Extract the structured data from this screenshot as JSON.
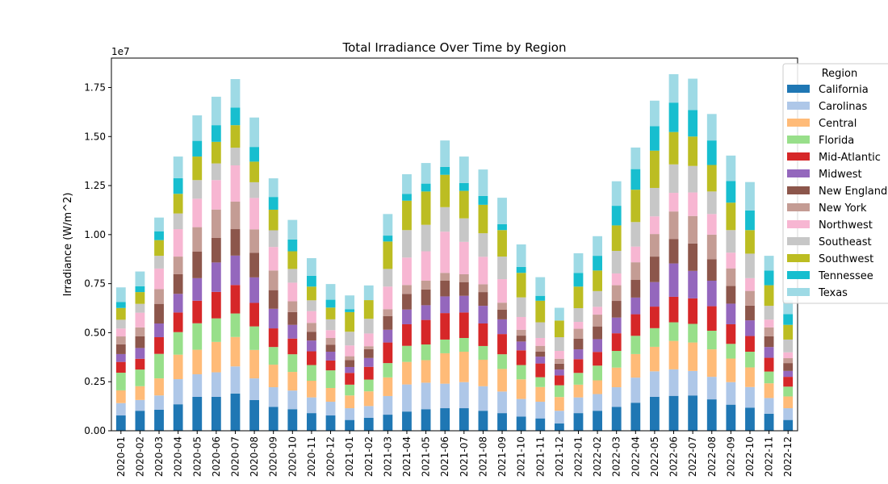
{
  "chart_data": {
    "type": "bar",
    "stacked": true,
    "title": "Total Irradiance Over Time by Region",
    "xlabel": "",
    "ylabel": "Irradiance (W/m^2)",
    "y_offset_label": "1e7",
    "ylim": [
      0,
      1.9
    ],
    "yticks": [
      "0.00",
      "0.25",
      "0.50",
      "0.75",
      "1.00",
      "1.25",
      "1.50",
      "1.75"
    ],
    "grid": false,
    "legend_title": "Region",
    "legend_position": "top-right",
    "categories": [
      "2020-01",
      "2020-02",
      "2020-03",
      "2020-04",
      "2020-05",
      "2020-06",
      "2020-07",
      "2020-08",
      "2020-09",
      "2020-10",
      "2020-11",
      "2020-12",
      "2021-01",
      "2021-02",
      "2021-03",
      "2021-04",
      "2021-05",
      "2021-06",
      "2021-07",
      "2021-08",
      "2021-09",
      "2021-10",
      "2021-11",
      "2021-12",
      "2022-01",
      "2022-02",
      "2022-03",
      "2022-04",
      "2022-05",
      "2022-06",
      "2022-07",
      "2022-08",
      "2022-09",
      "2022-10",
      "2022-11",
      "2022-12"
    ],
    "series": [
      {
        "name": "California",
        "color": "#1f77b4",
        "values": [
          0.078,
          0.102,
          0.107,
          0.135,
          0.173,
          0.173,
          0.19,
          0.157,
          0.122,
          0.11,
          0.09,
          0.078,
          0.055,
          0.066,
          0.082,
          0.098,
          0.11,
          0.115,
          0.115,
          0.102,
          0.09,
          0.072,
          0.063,
          0.037,
          0.09,
          0.102,
          0.122,
          0.143,
          0.173,
          0.178,
          0.18,
          0.16,
          0.133,
          0.118,
          0.087,
          0.055
        ]
      },
      {
        "name": "Carolinas",
        "color": "#aec7e8",
        "values": [
          0.063,
          0.055,
          0.073,
          0.128,
          0.115,
          0.125,
          0.138,
          0.11,
          0.1,
          0.095,
          0.08,
          0.07,
          0.06,
          0.06,
          0.095,
          0.138,
          0.135,
          0.125,
          0.133,
          0.125,
          0.11,
          0.09,
          0.085,
          0.065,
          0.08,
          0.085,
          0.1,
          0.128,
          0.13,
          0.135,
          0.125,
          0.115,
          0.115,
          0.105,
          0.08,
          0.06
        ]
      },
      {
        "name": "Central",
        "color": "#ffbb78",
        "values": [
          0.065,
          0.07,
          0.087,
          0.125,
          0.125,
          0.155,
          0.15,
          0.145,
          0.115,
          0.095,
          0.085,
          0.07,
          0.065,
          0.075,
          0.095,
          0.115,
          0.115,
          0.155,
          0.155,
          0.135,
          0.115,
          0.1,
          0.075,
          0.07,
          0.065,
          0.07,
          0.1,
          0.12,
          0.125,
          0.145,
          0.145,
          0.14,
          0.12,
          0.1,
          0.075,
          0.06
        ]
      },
      {
        "name": "Florida",
        "color": "#98df8a",
        "values": [
          0.09,
          0.085,
          0.125,
          0.115,
          0.135,
          0.12,
          0.12,
          0.12,
          0.09,
          0.09,
          0.08,
          0.09,
          0.055,
          0.06,
          0.073,
          0.082,
          0.08,
          0.07,
          0.07,
          0.07,
          0.075,
          0.073,
          0.05,
          0.06,
          0.06,
          0.075,
          0.085,
          0.093,
          0.095,
          0.095,
          0.095,
          0.095,
          0.075,
          0.08,
          0.06,
          0.05
        ]
      },
      {
        "name": "Mid-Atlantic",
        "color": "#d62728",
        "values": [
          0.055,
          0.055,
          0.085,
          0.1,
          0.115,
          0.135,
          0.145,
          0.12,
          0.095,
          0.08,
          0.07,
          0.05,
          0.06,
          0.065,
          0.105,
          0.11,
          0.125,
          0.135,
          0.13,
          0.115,
          0.103,
          0.075,
          0.07,
          0.05,
          0.07,
          0.07,
          0.09,
          0.11,
          0.11,
          0.13,
          0.13,
          0.125,
          0.1,
          0.08,
          0.07,
          0.05
        ]
      },
      {
        "name": "Midwest",
        "color": "#9467bd",
        "values": [
          0.04,
          0.055,
          0.07,
          0.095,
          0.115,
          0.15,
          0.15,
          0.13,
          0.1,
          0.07,
          0.055,
          0.045,
          0.03,
          0.045,
          0.065,
          0.075,
          0.075,
          0.085,
          0.085,
          0.09,
          0.075,
          0.045,
          0.035,
          0.03,
          0.05,
          0.065,
          0.08,
          0.085,
          0.125,
          0.17,
          0.14,
          0.13,
          0.105,
          0.08,
          0.055,
          0.03
        ]
      },
      {
        "name": "New England",
        "color": "#8c564b",
        "values": [
          0.05,
          0.06,
          0.1,
          0.1,
          0.135,
          0.125,
          0.135,
          0.125,
          0.095,
          0.065,
          0.045,
          0.035,
          0.035,
          0.045,
          0.07,
          0.08,
          0.08,
          0.08,
          0.07,
          0.07,
          0.05,
          0.03,
          0.025,
          0.03,
          0.055,
          0.065,
          0.085,
          0.09,
          0.13,
          0.125,
          0.14,
          0.11,
          0.09,
          0.075,
          0.055,
          0.04
        ]
      },
      {
        "name": "New York",
        "color": "#c49c94",
        "values": [
          0.04,
          0.045,
          0.075,
          0.09,
          0.125,
          0.145,
          0.14,
          0.12,
          0.1,
          0.055,
          0.045,
          0.035,
          0.02,
          0.015,
          0.035,
          0.045,
          0.045,
          0.04,
          0.04,
          0.04,
          0.035,
          0.03,
          0.03,
          0.025,
          0.05,
          0.06,
          0.08,
          0.09,
          0.115,
          0.14,
          0.14,
          0.125,
          0.09,
          0.075,
          0.045,
          0.025
        ]
      },
      {
        "name": "Northwest",
        "color": "#f7b6d2",
        "values": [
          0.04,
          0.075,
          0.105,
          0.14,
          0.145,
          0.15,
          0.185,
          0.16,
          0.12,
          0.095,
          0.06,
          0.04,
          0.055,
          0.065,
          0.115,
          0.14,
          0.15,
          0.21,
          0.165,
          0.14,
          0.12,
          0.065,
          0.04,
          0.04,
          0.035,
          0.04,
          0.06,
          0.08,
          0.09,
          0.095,
          0.12,
          0.105,
          0.08,
          0.065,
          0.04,
          0.03
        ]
      },
      {
        "name": "Southeast",
        "color": "#c7c7c7",
        "values": [
          0.045,
          0.045,
          0.065,
          0.08,
          0.095,
          0.085,
          0.09,
          0.08,
          0.085,
          0.07,
          0.055,
          0.055,
          0.07,
          0.075,
          0.09,
          0.14,
          0.135,
          0.125,
          0.12,
          0.12,
          0.115,
          0.1,
          0.08,
          0.07,
          0.07,
          0.08,
          0.115,
          0.125,
          0.145,
          0.145,
          0.135,
          0.115,
          0.115,
          0.125,
          0.07,
          0.065
        ]
      },
      {
        "name": "Southwest",
        "color": "#bcbd22",
        "values": [
          0.06,
          0.06,
          0.08,
          0.1,
          0.12,
          0.11,
          0.115,
          0.105,
          0.105,
          0.09,
          0.07,
          0.06,
          0.1,
          0.095,
          0.14,
          0.15,
          0.17,
          0.165,
          0.14,
          0.145,
          0.135,
          0.125,
          0.11,
          0.085,
          0.11,
          0.105,
          0.13,
          0.165,
          0.19,
          0.165,
          0.15,
          0.135,
          0.14,
          0.12,
          0.105,
          0.075
        ]
      },
      {
        "name": "Tennessee",
        "color": "#17becf",
        "values": [
          0.03,
          0.03,
          0.045,
          0.08,
          0.08,
          0.085,
          0.09,
          0.075,
          0.065,
          0.06,
          0.055,
          0.04,
          0.015,
          0.0,
          0.03,
          0.035,
          0.04,
          0.04,
          0.04,
          0.045,
          0.03,
          0.03,
          0.025,
          0.0,
          0.07,
          0.075,
          0.1,
          0.105,
          0.125,
          0.15,
          0.135,
          0.125,
          0.11,
          0.1,
          0.075,
          0.055
        ]
      },
      {
        "name": "Texas",
        "color": "#9edae5",
        "values": [
          0.075,
          0.075,
          0.07,
          0.11,
          0.13,
          0.145,
          0.145,
          0.15,
          0.095,
          0.1,
          0.09,
          0.08,
          0.07,
          0.075,
          0.11,
          0.1,
          0.105,
          0.135,
          0.135,
          0.135,
          0.135,
          0.115,
          0.095,
          0.065,
          0.1,
          0.1,
          0.125,
          0.11,
          0.13,
          0.145,
          0.16,
          0.135,
          0.13,
          0.145,
          0.075,
          0.07
        ]
      }
    ]
  }
}
